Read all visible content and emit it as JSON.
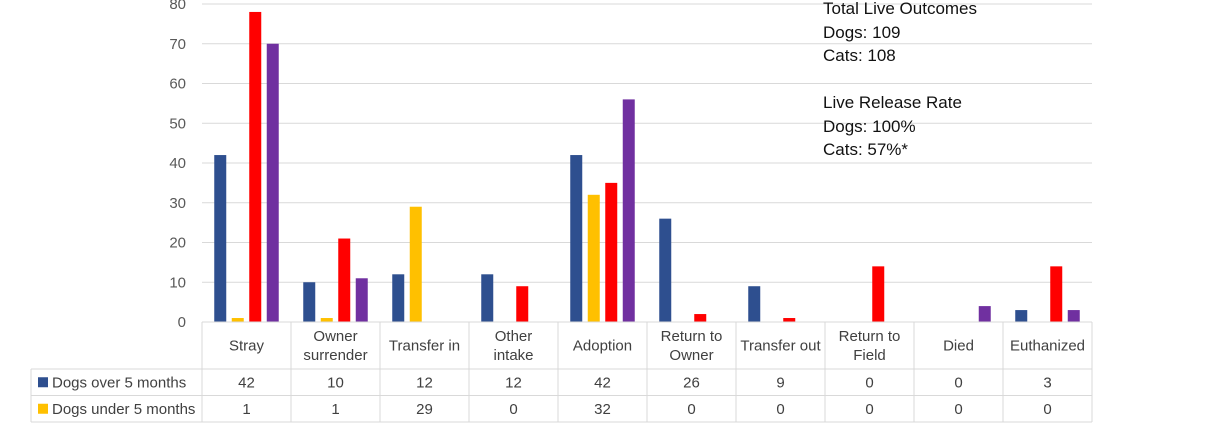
{
  "chart_data": {
    "type": "bar",
    "categories": [
      "Stray",
      "Owner surrender",
      "Transfer in",
      "Other intake",
      "Adoption",
      "Return to Owner",
      "Transfer out",
      "Return to Field",
      "Died",
      "Euthanized"
    ],
    "category_lines": [
      [
        "Stray"
      ],
      [
        "Owner",
        "surrender"
      ],
      [
        "Transfer in"
      ],
      [
        "Other",
        "intake"
      ],
      [
        "Adoption"
      ],
      [
        "Return to",
        "Owner"
      ],
      [
        "Transfer out"
      ],
      [
        "Return to",
        "Field"
      ],
      [
        "Died"
      ],
      [
        "Euthanized"
      ]
    ],
    "series": [
      {
        "name": "Dogs over 5 months",
        "color": "#2E4F8F",
        "values": [
          42,
          10,
          12,
          12,
          42,
          26,
          9,
          0,
          0,
          3
        ]
      },
      {
        "name": "Dogs under 5 months",
        "color": "#FFC000",
        "values": [
          1,
          1,
          29,
          0,
          32,
          0,
          0,
          0,
          0,
          0
        ]
      },
      {
        "color": "#FF0000",
        "values": [
          78,
          21,
          0,
          9,
          35,
          2,
          1,
          14,
          0,
          14
        ]
      },
      {
        "color": "#7030A0",
        "values": [
          70,
          11,
          0,
          0,
          56,
          0,
          0,
          0,
          4,
          3
        ]
      }
    ],
    "table_rows": [
      0,
      1
    ],
    "ylim": [
      0,
      80
    ],
    "yticks": [
      0,
      10,
      20,
      30,
      40,
      50,
      60,
      70,
      80
    ],
    "grid": true,
    "legend": "data table"
  },
  "annotation": {
    "heading1": "Total Live Outcomes",
    "line1": "Dogs: 109",
    "line2": "Cats: 108",
    "heading2": "Live Release Rate",
    "line3": "Dogs: 100%",
    "line4": "Cats: 57%*"
  }
}
